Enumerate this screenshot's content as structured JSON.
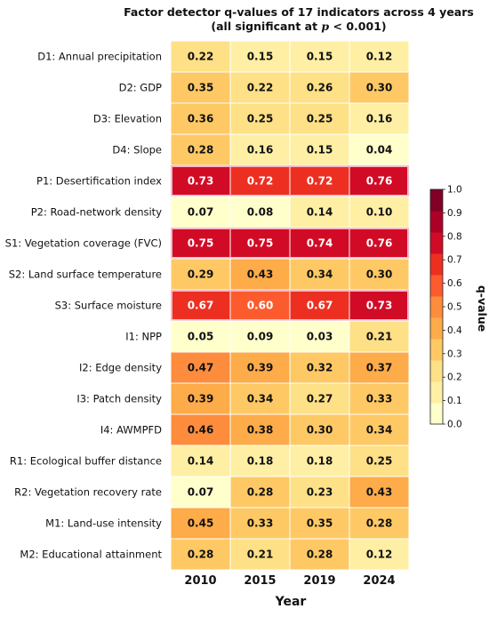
{
  "chart_data": {
    "type": "heatmap",
    "title_line1": "Factor detector q-values of 17 indicators across 4 years",
    "title_line2_prefix": "(all significant at ",
    "title_line2_italic": "p",
    "title_line2_suffix": " < 0.001)",
    "xlabel": "Year",
    "colorbar_label": "q-value",
    "colorbar_range": [
      0.0,
      1.0
    ],
    "colorbar_ticks": [
      "0.0",
      "0.1",
      "0.2",
      "0.3",
      "0.4",
      "0.5",
      "0.6",
      "0.7",
      "0.8",
      "0.9",
      "1.0"
    ],
    "highlighted_rows": [
      "P1: Desertification index",
      "S1: Vegetation coverage (FVC)",
      "S3: Surface moisture"
    ],
    "years": [
      "2010",
      "2015",
      "2019",
      "2024"
    ],
    "rows": [
      {
        "label": "D1: Annual precipitation",
        "values": [
          0.22,
          0.15,
          0.15,
          0.12
        ],
        "texts": [
          "0.22",
          "0.15",
          "0.15",
          "0.12"
        ]
      },
      {
        "label": "D2: GDP",
        "values": [
          0.35,
          0.22,
          0.26,
          0.3
        ],
        "texts": [
          "0.35",
          "0.22",
          "0.26",
          "0.30"
        ]
      },
      {
        "label": "D3: Elevation",
        "values": [
          0.36,
          0.25,
          0.25,
          0.16
        ],
        "texts": [
          "0.36",
          "0.25",
          "0.25",
          "0.16"
        ]
      },
      {
        "label": "D4: Slope",
        "values": [
          0.28,
          0.16,
          0.15,
          0.04
        ],
        "texts": [
          "0.28",
          "0.16",
          "0.15",
          "0.04"
        ]
      },
      {
        "label": "P1: Desertification index",
        "values": [
          0.73,
          0.72,
          0.72,
          0.76
        ],
        "texts": [
          "0.73",
          "0.72",
          "0.72",
          "0.76"
        ]
      },
      {
        "label": "P2: Road-network density",
        "values": [
          0.07,
          0.08,
          0.14,
          0.1
        ],
        "texts": [
          "0.07",
          "0.08",
          "0.14",
          "0.10"
        ]
      },
      {
        "label": "S1: Vegetation coverage (FVC)",
        "values": [
          0.75,
          0.75,
          0.74,
          0.76
        ],
        "texts": [
          "0.75",
          "0.75",
          "0.74",
          "0.76"
        ]
      },
      {
        "label": "S2: Land surface temperature",
        "values": [
          0.29,
          0.43,
          0.34,
          0.3
        ],
        "texts": [
          "0.29",
          "0.43",
          "0.34",
          "0.30"
        ]
      },
      {
        "label": "S3: Surface moisture",
        "values": [
          0.67,
          0.6,
          0.67,
          0.73
        ],
        "texts": [
          "0.67",
          "0.60",
          "0.67",
          "0.73"
        ]
      },
      {
        "label": "I1: NPP",
        "values": [
          0.05,
          0.09,
          0.03,
          0.21
        ],
        "texts": [
          "0.05",
          "0.09",
          "0.03",
          "0.21"
        ]
      },
      {
        "label": "I2: Edge density",
        "values": [
          0.47,
          0.39,
          0.32,
          0.37
        ],
        "texts": [
          "0.47",
          "0.39",
          "0.32",
          "0.37"
        ]
      },
      {
        "label": "I3: Patch density",
        "values": [
          0.39,
          0.34,
          0.27,
          0.33
        ],
        "texts": [
          "0.39",
          "0.34",
          "0.27",
          "0.33"
        ]
      },
      {
        "label": "I4: AWMPFD",
        "values": [
          0.46,
          0.38,
          0.3,
          0.34
        ],
        "texts": [
          "0.46",
          "0.38",
          "0.30",
          "0.34"
        ]
      },
      {
        "label": "R1: Ecological buffer distance",
        "values": [
          0.14,
          0.18,
          0.18,
          0.25
        ],
        "texts": [
          "0.14",
          "0.18",
          "0.18",
          "0.25"
        ]
      },
      {
        "label": "R2: Vegetation recovery rate",
        "values": [
          0.07,
          0.28,
          0.23,
          0.43
        ],
        "texts": [
          "0.07",
          "0.28",
          "0.23",
          "0.43"
        ]
      },
      {
        "label": "M1: Land-use intensity",
        "values": [
          0.45,
          0.33,
          0.35,
          0.28
        ],
        "texts": [
          "0.45",
          "0.33",
          "0.35",
          "0.28"
        ]
      },
      {
        "label": "M2: Educational attainment",
        "values": [
          0.28,
          0.21,
          0.28,
          0.12
        ],
        "texts": [
          "0.28",
          "0.21",
          "0.28",
          "0.12"
        ]
      }
    ],
    "colors": [
      "#ffffcc",
      "#ffefa5",
      "#fee087",
      "#fec965",
      "#feab49",
      "#fd8d3c",
      "#fc5b2e",
      "#ed2f22",
      "#d10b26",
      "#ad0026",
      "#800026"
    ]
  }
}
